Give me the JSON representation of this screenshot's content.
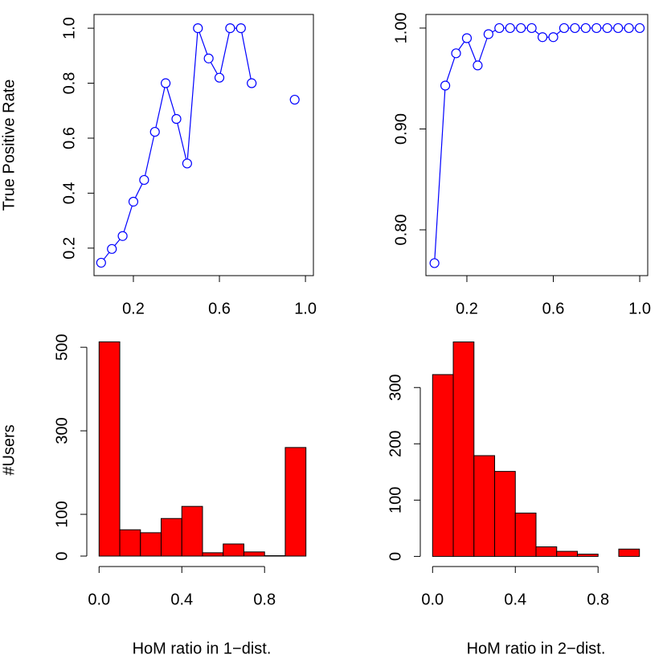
{
  "chart_data": [
    {
      "type": "line",
      "ylabel": "True Positive Rate",
      "x": [
        0.05,
        0.1,
        0.15,
        0.2,
        0.25,
        0.3,
        0.35,
        0.4,
        0.45,
        0.5,
        0.55,
        0.6,
        0.65,
        0.7,
        0.75,
        0.8,
        0.85,
        0.9,
        0.95
      ],
      "values": [
        0.147,
        0.197,
        0.244,
        0.369,
        0.448,
        0.623,
        0.8,
        0.67,
        0.508,
        1.0,
        0.89,
        0.82,
        1.0,
        1.0,
        0.8,
        null,
        null,
        null,
        0.74
      ],
      "color": "#0000ff",
      "xlim": [
        0.017,
        1.037
      ],
      "ylim": [
        0.1,
        1.05
      ],
      "xticks": [
        0.2,
        0.6,
        {
          "value": 1,
          "label": "1.0"
        }
      ],
      "yticks": [
        0.2,
        0.4,
        0.6,
        0.8,
        {
          "value": 1,
          "label": "1.0"
        }
      ]
    },
    {
      "type": "line",
      "x": [
        0.05,
        0.1,
        0.15,
        0.2,
        0.25,
        0.3,
        0.35,
        0.4,
        0.45,
        0.5,
        0.55,
        0.6,
        0.65,
        0.7,
        0.75,
        0.8,
        0.85,
        0.9,
        0.95,
        1.0
      ],
      "values": [
        0.767,
        0.943,
        0.975,
        0.99,
        0.963,
        0.994,
        1.0,
        1.0,
        1.0,
        1.0,
        0.991,
        0.991,
        1.0,
        1.0,
        1.0,
        1.0,
        1.0,
        1.0,
        1.0,
        1.0
      ],
      "color": "#0000ff",
      "xlim": [
        0.0104,
        1.037
      ],
      "ylim": [
        0.7546,
        1.0135
      ],
      "xticks": [
        0.2,
        0.6,
        {
          "value": 1,
          "label": "1.0"
        }
      ],
      "yticks": [
        {
          "value": 0.8,
          "label": "0.80"
        },
        {
          "value": 0.9,
          "label": "0.90"
        },
        {
          "value": 1,
          "label": "1.00"
        }
      ]
    },
    {
      "type": "histogram",
      "ylabel": "#Users",
      "xlabel": "HoM ratio in 1−dist.",
      "bins": [
        0,
        0.1,
        0.2,
        0.3,
        0.4,
        0.5,
        0.6,
        0.7,
        0.8,
        0.9,
        1.0
      ],
      "values": [
        513,
        63,
        56,
        90,
        119,
        8,
        29,
        10,
        1,
        260
      ],
      "color": "#ff0000",
      "xlim": [
        -0.04,
        1.04
      ],
      "ylim": [
        -25,
        533
      ],
      "xticks": [
        {
          "value": 0,
          "label": "0.0"
        },
        0.4,
        0.8
      ],
      "yticks": [
        0,
        100,
        300,
        500
      ]
    },
    {
      "type": "histogram",
      "xlabel": "HoM ratio in 2−dist.",
      "bins": [
        0,
        0.1,
        0.2,
        0.3,
        0.4,
        0.5,
        0.6,
        0.7,
        0.8,
        0.9,
        1.0
      ],
      "values": [
        323,
        381,
        179,
        151,
        77,
        17,
        9,
        4,
        0,
        13
      ],
      "color": "#ff0000",
      "xlim": [
        -0.04,
        1.04
      ],
      "ylim": [
        -18,
        396
      ],
      "xticks": [
        {
          "value": 0,
          "label": "0.0"
        },
        0.4,
        0.8
      ],
      "yticks": [
        0,
        100,
        200,
        300
      ]
    }
  ]
}
